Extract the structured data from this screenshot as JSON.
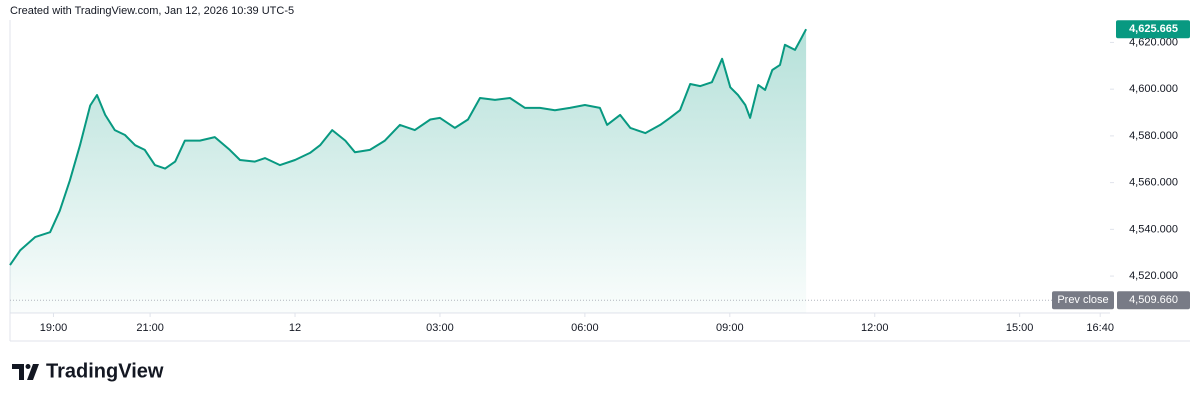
{
  "chart_data": {
    "type": "area",
    "subtitle": "Created with TradingView.com, Jan 12, 2026 10:39 UTC-5",
    "color": "#089981",
    "x": [
      -5.9,
      -5.69,
      -5.38,
      -5.07,
      -4.87,
      -4.66,
      -4.45,
      -4.24,
      -4.1,
      -3.93,
      -3.73,
      -3.52,
      -3.31,
      -3.11,
      -2.9,
      -2.69,
      -2.48,
      -2.28,
      -1.97,
      -1.66,
      -1.35,
      -1.14,
      -0.83,
      -0.62,
      -0.31,
      0,
      0.31,
      0.52,
      0.77,
      1.04,
      1.24,
      1.55,
      1.86,
      2.17,
      2.48,
      2.8,
      3.0,
      3.31,
      3.58,
      3.83,
      4.14,
      4.45,
      4.76,
      5.07,
      5.38,
      5.69,
      6.0,
      6.31,
      6.46,
      6.73,
      6.94,
      7.25,
      7.56,
      7.76,
      7.97,
      8.18,
      8.39,
      8.63,
      8.84,
      9.01,
      9.17,
      9.32,
      9.42,
      9.59,
      9.73,
      9.88,
      10.04,
      10.14,
      10.35,
      10.46,
      10.58
    ],
    "values": [
      4524.7,
      4531,
      4536.7,
      4538.8,
      4548,
      4561,
      4576,
      4593,
      4597.5,
      4589,
      4582.5,
      4580.4,
      4576,
      4574,
      4567.5,
      4566,
      4569,
      4578,
      4578,
      4579.5,
      4574,
      4569.7,
      4569,
      4570.5,
      4567.5,
      4569.7,
      4572.7,
      4576,
      4582.5,
      4578,
      4573,
      4574,
      4578,
      4584.7,
      4582.5,
      4587,
      4587.7,
      4583.4,
      4587,
      4596.2,
      4595.4,
      4596.2,
      4592,
      4592,
      4591,
      4592,
      4593.2,
      4592,
      4584.7,
      4589,
      4583.4,
      4581.2,
      4584.7,
      4587.7,
      4591,
      4602.2,
      4601.3,
      4603,
      4613,
      4600.8,
      4597.5,
      4593.2,
      4587.7,
      4601.8,
      4599.7,
      4608.2,
      4610.4,
      4619,
      4616.8,
      4621,
      4625.665
    ],
    "xlim": [
      -5.9,
      16.87
    ],
    "ylim": [
      4504.2,
      4629.6
    ],
    "xticks": [
      {
        "value": -5,
        "label": "19:00"
      },
      {
        "value": -3,
        "label": "21:00"
      },
      {
        "value": 0,
        "label": "12"
      },
      {
        "value": 3,
        "label": "03:00"
      },
      {
        "value": 6,
        "label": "06:00"
      },
      {
        "value": 9,
        "label": "09:00"
      },
      {
        "value": 12,
        "label": "12:00"
      },
      {
        "value": 15,
        "label": "15:00"
      },
      {
        "value": 16.667,
        "label": "16:40"
      }
    ],
    "yticks": [
      {
        "value": 4520,
        "label": "4,520.000"
      },
      {
        "value": 4540,
        "label": "4,540.000"
      },
      {
        "value": 4560,
        "label": "4,560.000"
      },
      {
        "value": 4580,
        "label": "4,580.000"
      },
      {
        "value": 4600,
        "label": "4,600.000"
      },
      {
        "value": 4620,
        "label": "4,620.000"
      }
    ],
    "last_price": {
      "value": 4625.665,
      "label": "4,625.665"
    },
    "prev_close": {
      "name": "Prev close",
      "value": 4509.66,
      "label": "4,509.660"
    }
  },
  "brand": "TradingView"
}
